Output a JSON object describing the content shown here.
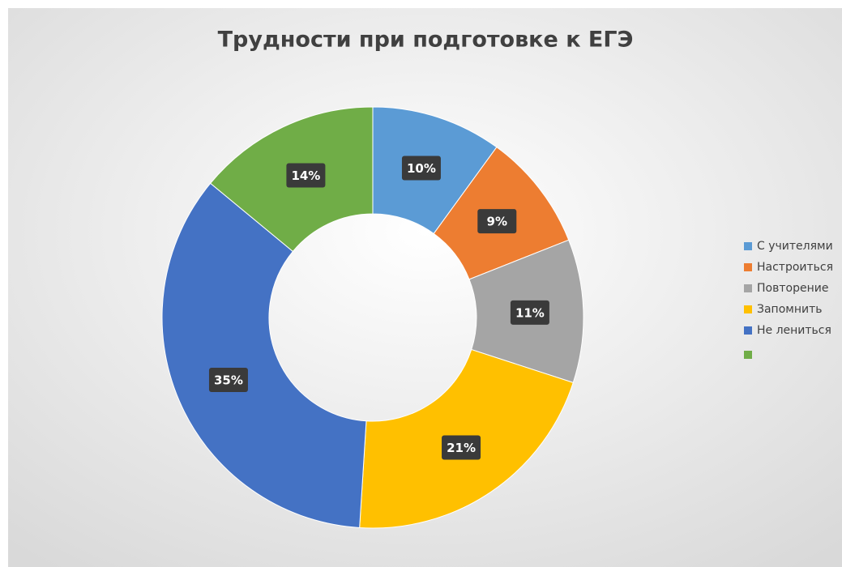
{
  "chart_data": {
    "type": "donut",
    "title": "Трудности при подготовке к ЕГЭ",
    "categories": [
      "С учителями",
      "Настроиться",
      "Повторение",
      "Запомнить",
      "Не лениться",
      null
    ],
    "values": [
      10,
      9,
      11,
      21,
      35,
      14
    ],
    "value_labels": [
      "10%",
      "9%",
      "11%",
      "21%",
      "35%",
      "14%"
    ],
    "colors": [
      "#5b9bd5",
      "#ed7d31",
      "#a5a5a5",
      "#ffc000",
      "#4472c4",
      "#70ad47"
    ],
    "legend": "right"
  }
}
